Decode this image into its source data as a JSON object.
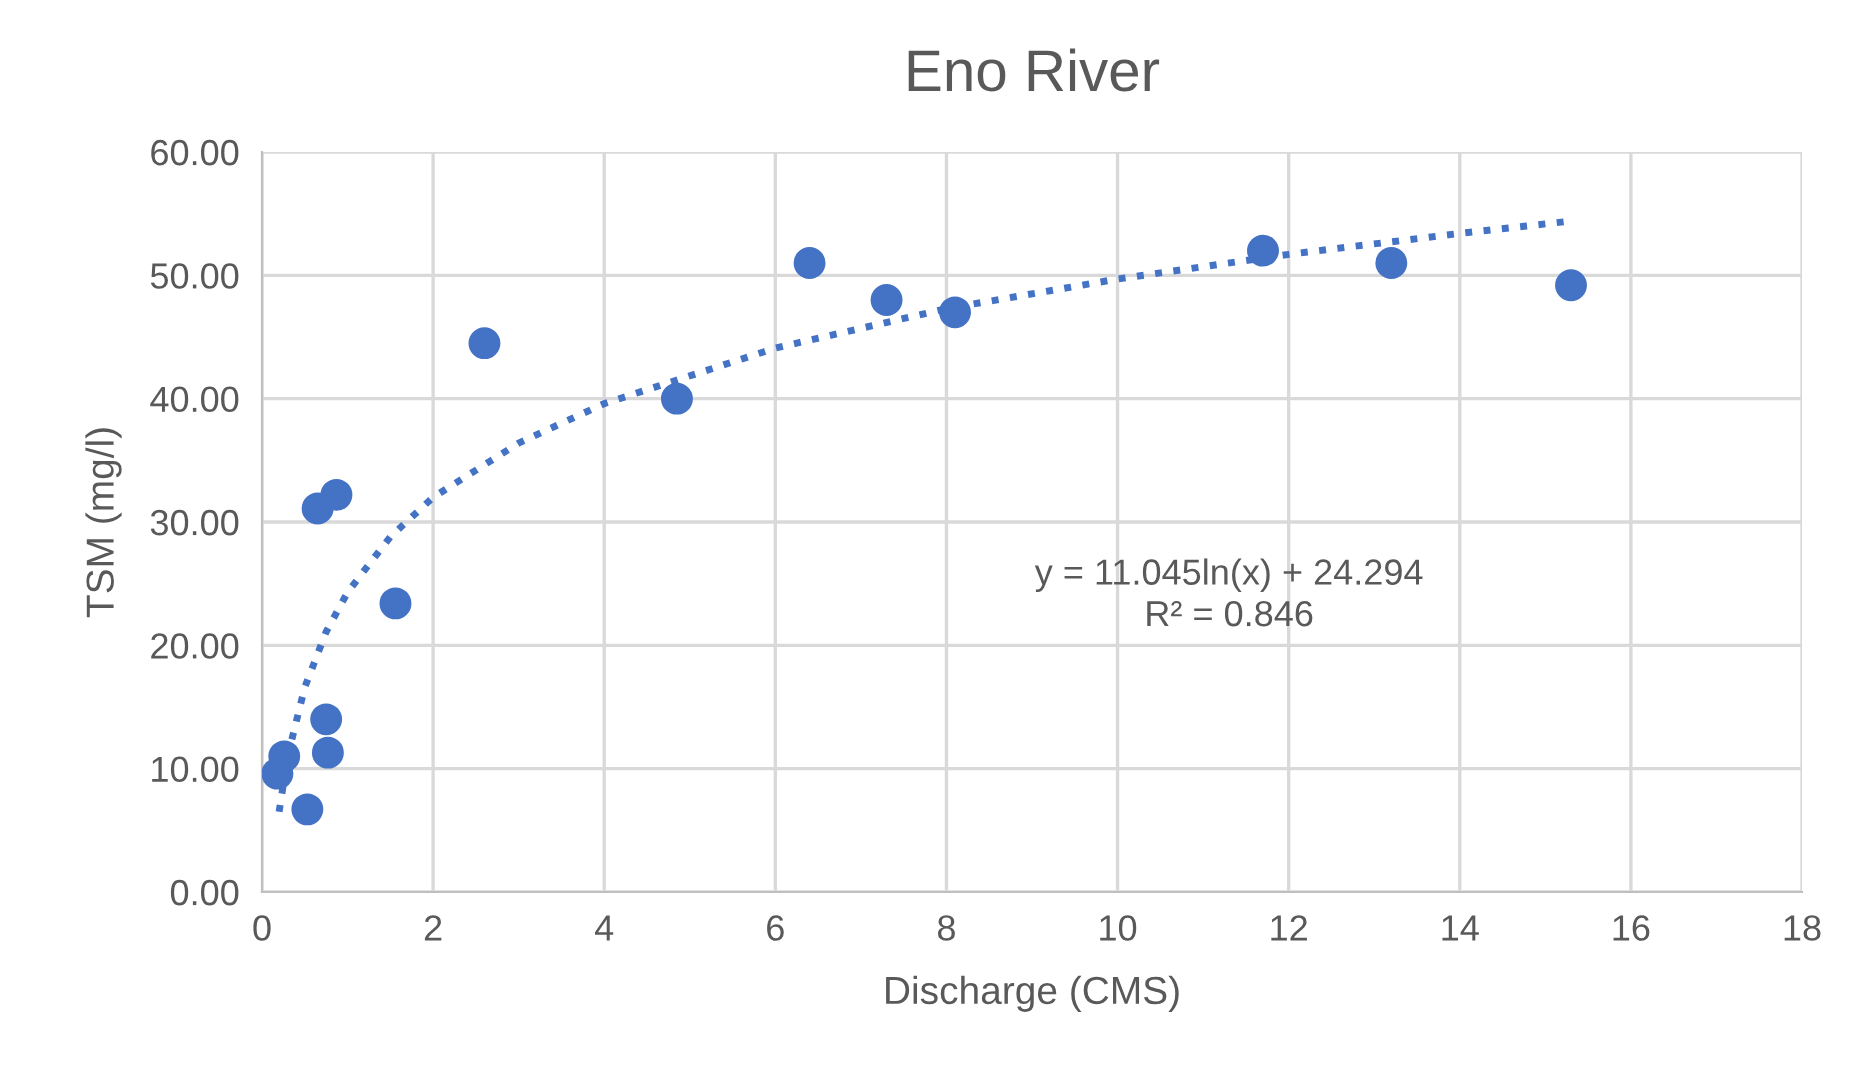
{
  "chart_data": {
    "type": "scatter",
    "title": "Eno River",
    "xlabel": "Discharge (CMS)",
    "ylabel": "TSM (mg/l)",
    "xlim": [
      0,
      18
    ],
    "xticks": [
      0,
      2,
      4,
      6,
      8,
      10,
      12,
      14,
      16,
      18
    ],
    "ylim": [
      0,
      60
    ],
    "yticks": [
      {
        "value": 0,
        "label": "0.00"
      },
      {
        "value": 10,
        "label": "10.00"
      },
      {
        "value": 20,
        "label": "20.00"
      },
      {
        "value": 30,
        "label": "30.00"
      },
      {
        "value": 40,
        "label": "40.00"
      },
      {
        "value": 50,
        "label": "50.00"
      },
      {
        "value": 60,
        "label": "60.00"
      }
    ],
    "grid": true,
    "legend": false,
    "series": [
      {
        "color": "#4472c4",
        "marker": "circle",
        "x": [
          0.18,
          0.26,
          0.53,
          0.75,
          0.77,
          0.65,
          0.87,
          1.56,
          2.6,
          4.85,
          6.4,
          7.3,
          8.1,
          11.7,
          13.2,
          15.3
        ],
        "values": [
          9.6,
          11.0,
          6.7,
          14.0,
          11.3,
          31.1,
          32.2,
          23.4,
          44.5,
          40.0,
          51.0,
          48.0,
          47.0,
          52.0,
          51.0,
          49.2
        ]
      },
      {
        "type": "line",
        "color": "#4472c4",
        "marker": "none",
        "line_style": "dotted",
        "x": [
          0.2,
          0.3,
          0.5,
          0.75,
          1,
          1.5,
          2,
          3,
          4,
          6,
          8,
          10,
          12,
          14,
          15.3
        ],
        "values": [
          6.5,
          11.0,
          16.6,
          21.1,
          24.3,
          28.8,
          32.0,
          36.4,
          39.6,
          44.1,
          47.3,
          49.7,
          51.7,
          53.4,
          54.4
        ]
      }
    ],
    "annotations": [
      "y = 11.045ln(x) + 24.294\nR² = 0.846"
    ]
  }
}
